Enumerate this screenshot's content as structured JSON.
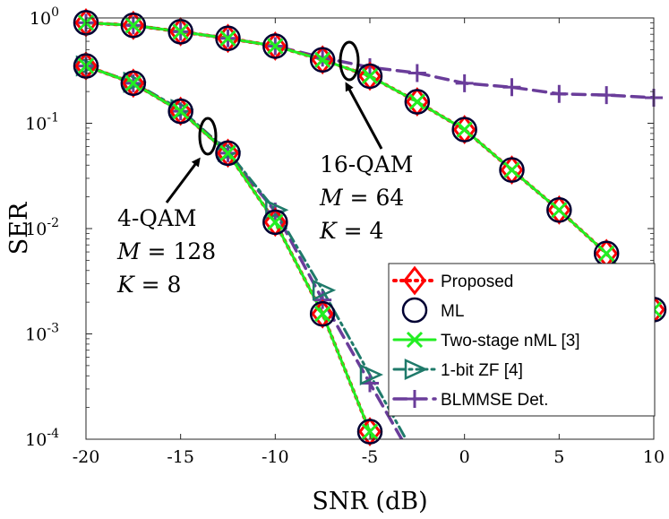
{
  "chart_data": {
    "type": "line",
    "title": "",
    "xlabel": "SNR (dB)",
    "ylabel": "SER",
    "xlim": [
      -20,
      10
    ],
    "ylim": [
      0.0001,
      1
    ],
    "yscale": "log",
    "xticks": [
      -20,
      -15,
      -10,
      -5,
      0,
      5,
      10
    ],
    "xtick_labels": [
      "-20",
      "-15",
      "-10",
      "-5",
      "0",
      "5",
      "10"
    ],
    "yticks": [
      1,
      0.1,
      0.01,
      0.001,
      0.0001
    ],
    "ytick_exponents": [
      "0",
      "-1",
      "-2",
      "-3",
      "-4"
    ],
    "ytick_base": "10",
    "legend_position": "bottom-right",
    "legend": [
      "Proposed",
      "ML",
      "Two-stage nML [3]",
      "1-bit ZF [4]",
      "BLMMSE Det."
    ],
    "series": [
      {
        "name": "Proposed",
        "group": "4-QAM",
        "x": [
          -20,
          -17.5,
          -15,
          -12.5,
          -10,
          -7.5,
          -5
        ],
        "y": [
          0.35,
          0.24,
          0.13,
          0.052,
          0.0115,
          0.00155,
          0.000118
        ]
      },
      {
        "name": "ML",
        "group": "4-QAM",
        "x": [
          -20,
          -17.5,
          -15,
          -12.5,
          -10,
          -7.5,
          -5
        ],
        "y": [
          0.35,
          0.24,
          0.13,
          0.052,
          0.0115,
          0.00155,
          0.000118
        ]
      },
      {
        "name": "Two-stage nML [3]",
        "group": "4-QAM",
        "x": [
          -20,
          -17.5,
          -15,
          -12.5,
          -10,
          -7.5,
          -5
        ],
        "y": [
          0.35,
          0.24,
          0.13,
          0.052,
          0.0115,
          0.00155,
          0.000118
        ]
      },
      {
        "name": "1-bit ZF [4]",
        "group": "4-QAM",
        "x": [
          -20,
          -17.5,
          -15,
          -12.5,
          -10,
          -7.5,
          -5
        ],
        "y": [
          0.35,
          0.245,
          0.135,
          0.054,
          0.015,
          0.0026,
          0.00041
        ]
      },
      {
        "name": "BLMMSE Det.",
        "group": "4-QAM",
        "x": [
          -20,
          -17.5,
          -15,
          -12.5,
          -10,
          -7.5,
          -5
        ],
        "y": [
          0.35,
          0.24,
          0.13,
          0.052,
          0.0145,
          0.0021,
          0.00034
        ]
      },
      {
        "name": "Proposed",
        "group": "16-QAM",
        "x": [
          -20,
          -17.5,
          -15,
          -12.5,
          -10,
          -7.5,
          -5,
          -2.5,
          0,
          2.5,
          5,
          7.5,
          10
        ],
        "y": [
          0.9,
          0.85,
          0.74,
          0.64,
          0.54,
          0.4,
          0.28,
          0.16,
          0.087,
          0.036,
          0.015,
          0.0058,
          0.0017
        ]
      },
      {
        "name": "ML",
        "group": "16-QAM",
        "x": [
          -20,
          -17.5,
          -15,
          -12.5,
          -10,
          -7.5,
          -5,
          -2.5,
          0,
          2.5,
          5,
          7.5,
          10
        ],
        "y": [
          0.9,
          0.85,
          0.74,
          0.64,
          0.54,
          0.4,
          0.28,
          0.16,
          0.087,
          0.036,
          0.015,
          0.0058,
          0.0017
        ]
      },
      {
        "name": "Two-stage nML [3]",
        "group": "16-QAM",
        "x": [
          -20,
          -17.5,
          -15,
          -12.5,
          -10,
          -7.5,
          -5,
          -2.5,
          0,
          2.5,
          5,
          7.5,
          10
        ],
        "y": [
          0.9,
          0.85,
          0.74,
          0.64,
          0.54,
          0.4,
          0.28,
          0.16,
          0.087,
          0.036,
          0.015,
          0.0058,
          0.0017
        ]
      },
      {
        "name": "BLMMSE Det.",
        "group": "16-QAM",
        "x": [
          -20,
          -17.5,
          -15,
          -12.5,
          -10,
          -7.5,
          -5,
          -2.5,
          0,
          2.5,
          5,
          7.5,
          10
        ],
        "y": [
          0.9,
          0.85,
          0.74,
          0.64,
          0.54,
          0.42,
          0.34,
          0.3,
          0.24,
          0.22,
          0.19,
          0.185,
          0.175
        ]
      }
    ],
    "annotations": [
      {
        "lines": [
          "16-QAM",
          "M = 64",
          "K = 4"
        ]
      },
      {
        "lines": [
          "4-QAM",
          "M = 128",
          "K = 8"
        ]
      }
    ]
  },
  "colors": {
    "proposed": "#ff0000",
    "ml": "#000033",
    "nml": "#22ee22",
    "zf": "#1f7a6a",
    "blmmse": "#6a3d9a"
  }
}
